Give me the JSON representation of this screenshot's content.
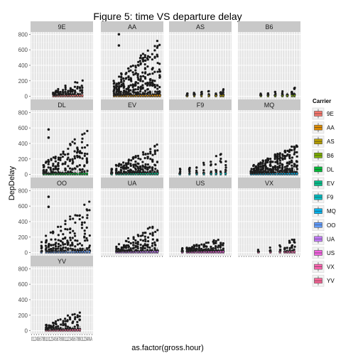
{
  "chart_data": {
    "type": "boxplot",
    "title": "Figure 5: time VS departure delay",
    "xlabel": "as.factor(gross.hour)",
    "ylabel": "DepDelay",
    "ylim": [
      -40,
      830
    ],
    "yticks": [
      0,
      200,
      400,
      600,
      800
    ],
    "x_categories": [
      "0",
      "1",
      "2",
      "3",
      "4",
      "5",
      "6",
      "7",
      "8",
      "9",
      "10",
      "11",
      "12",
      "13",
      "14",
      "15",
      "16",
      "17",
      "18",
      "19",
      "20",
      "21",
      "22",
      "23",
      "24",
      "NA"
    ],
    "x_tick_text": "012456789101234567890112345678901234NA",
    "legend": {
      "title": "Carrier",
      "entries": [
        {
          "name": "9E",
          "color": "#f8766d"
        },
        {
          "name": "AA",
          "color": "#de8c00"
        },
        {
          "name": "AS",
          "color": "#b79f00"
        },
        {
          "name": "B6",
          "color": "#7cae00"
        },
        {
          "name": "DL",
          "color": "#00ba38"
        },
        {
          "name": "EV",
          "color": "#00c08b"
        },
        {
          "name": "F9",
          "color": "#00bfc4"
        },
        {
          "name": "MQ",
          "color": "#00b4f0"
        },
        {
          "name": "OO",
          "color": "#619cff"
        },
        {
          "name": "UA",
          "color": "#c77cff"
        },
        {
          "name": "US",
          "color": "#f564e3"
        },
        {
          "name": "VX",
          "color": "#ff64b0"
        },
        {
          "name": "YV",
          "color": "#ff6699"
        }
      ]
    },
    "panels": [
      {
        "carrier": "9E",
        "color": "#f8766d",
        "hours": [
          9,
          10,
          11,
          12,
          13,
          14,
          15,
          16,
          17,
          18,
          19,
          20,
          21
        ],
        "max_outlier": 240,
        "density": 0.35
      },
      {
        "carrier": "AA",
        "color": "#de8c00",
        "hours": [
          5,
          6,
          7,
          8,
          9,
          10,
          11,
          12,
          13,
          14,
          15,
          16,
          17,
          18,
          19,
          20,
          21,
          22,
          23,
          24
        ],
        "max_outlier": 800,
        "density": 1.0
      },
      {
        "carrier": "AS",
        "color": "#b79f00",
        "hours": [
          7,
          10,
          13,
          16,
          19,
          21,
          22
        ],
        "max_outlier": 110,
        "density": 0.25
      },
      {
        "carrier": "B6",
        "color": "#7cae00",
        "hours": [
          9,
          12,
          15,
          18,
          20,
          22,
          23
        ],
        "max_outlier": 120,
        "density": 0.25
      },
      {
        "carrier": "DL",
        "color": "#00ba38",
        "hours": [
          5,
          6,
          7,
          8,
          9,
          10,
          11,
          12,
          13,
          14,
          15,
          16,
          17,
          18,
          19,
          20,
          21,
          22,
          23
        ],
        "max_outlier": 580,
        "density": 0.5
      },
      {
        "carrier": "EV",
        "color": "#00c08b",
        "hours": [
          4,
          6,
          7,
          8,
          9,
          10,
          11,
          12,
          13,
          14,
          15,
          16,
          17,
          18,
          19,
          20,
          21,
          22,
          23
        ],
        "max_outlier": 400,
        "density": 0.7
      },
      {
        "carrier": "F9",
        "color": "#00bfc4",
        "hours": [
          4,
          8,
          11,
          14,
          17,
          19,
          21,
          23
        ],
        "max_outlier": 330,
        "density": 0.25
      },
      {
        "carrier": "MQ",
        "color": "#00b4f0",
        "hours": [
          5,
          6,
          7,
          8,
          9,
          10,
          11,
          12,
          13,
          14,
          15,
          16,
          17,
          18,
          19,
          20,
          21,
          22,
          23,
          24
        ],
        "max_outlier": 400,
        "density": 1.0
      },
      {
        "carrier": "OO",
        "color": "#619cff",
        "hours": [
          4,
          6,
          7,
          8,
          9,
          10,
          11,
          12,
          13,
          14,
          15,
          16,
          17,
          18,
          19,
          20,
          21,
          22,
          23,
          24
        ],
        "max_outlier": 720,
        "density": 0.5
      },
      {
        "carrier": "UA",
        "color": "#c77cff",
        "hours": [
          6,
          7,
          8,
          9,
          10,
          11,
          12,
          13,
          14,
          15,
          16,
          17,
          18,
          19,
          20,
          21,
          22,
          23
        ],
        "max_outlier": 380,
        "density": 0.5
      },
      {
        "carrier": "US",
        "color": "#f564e3",
        "hours": [
          5,
          7,
          8,
          9,
          10,
          11,
          12,
          13,
          14,
          15,
          16,
          17,
          18,
          19,
          20,
          21,
          22
        ],
        "max_outlier": 200,
        "density": 0.4
      },
      {
        "carrier": "VX",
        "color": "#ff64b0",
        "hours": [
          8,
          13,
          17,
          19,
          20,
          21,
          22,
          23
        ],
        "max_outlier": 200,
        "density": 0.25
      },
      {
        "carrier": "YV",
        "color": "#ff6699",
        "hours": [
          6,
          7,
          8,
          9,
          10,
          11,
          12,
          13,
          14,
          15,
          16,
          17,
          18,
          19,
          20
        ],
        "max_outlier": 270,
        "density": 0.35
      }
    ]
  }
}
